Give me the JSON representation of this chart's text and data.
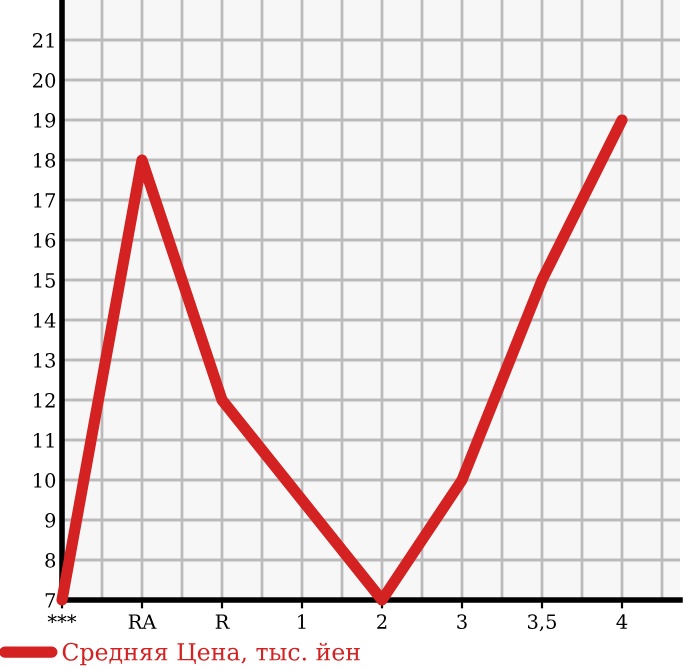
{
  "chart_data": {
    "type": "line",
    "categories": [
      "***",
      "RA",
      "R",
      "1",
      "2",
      "3",
      "3,5",
      "4"
    ],
    "series": [
      {
        "name": "Средняя Цена, тыс. йен",
        "color": "#d42121",
        "values": [
          7,
          18,
          12,
          9.5,
          7,
          10,
          15,
          19
        ]
      }
    ],
    "ylim": [
      7,
      22
    ],
    "yticks": [
      7,
      8,
      9,
      10,
      11,
      12,
      13,
      14,
      15,
      16,
      17,
      18,
      19,
      20,
      21
    ],
    "grid": true,
    "legend": "bottom",
    "marker": "none",
    "line_style": "solid"
  }
}
